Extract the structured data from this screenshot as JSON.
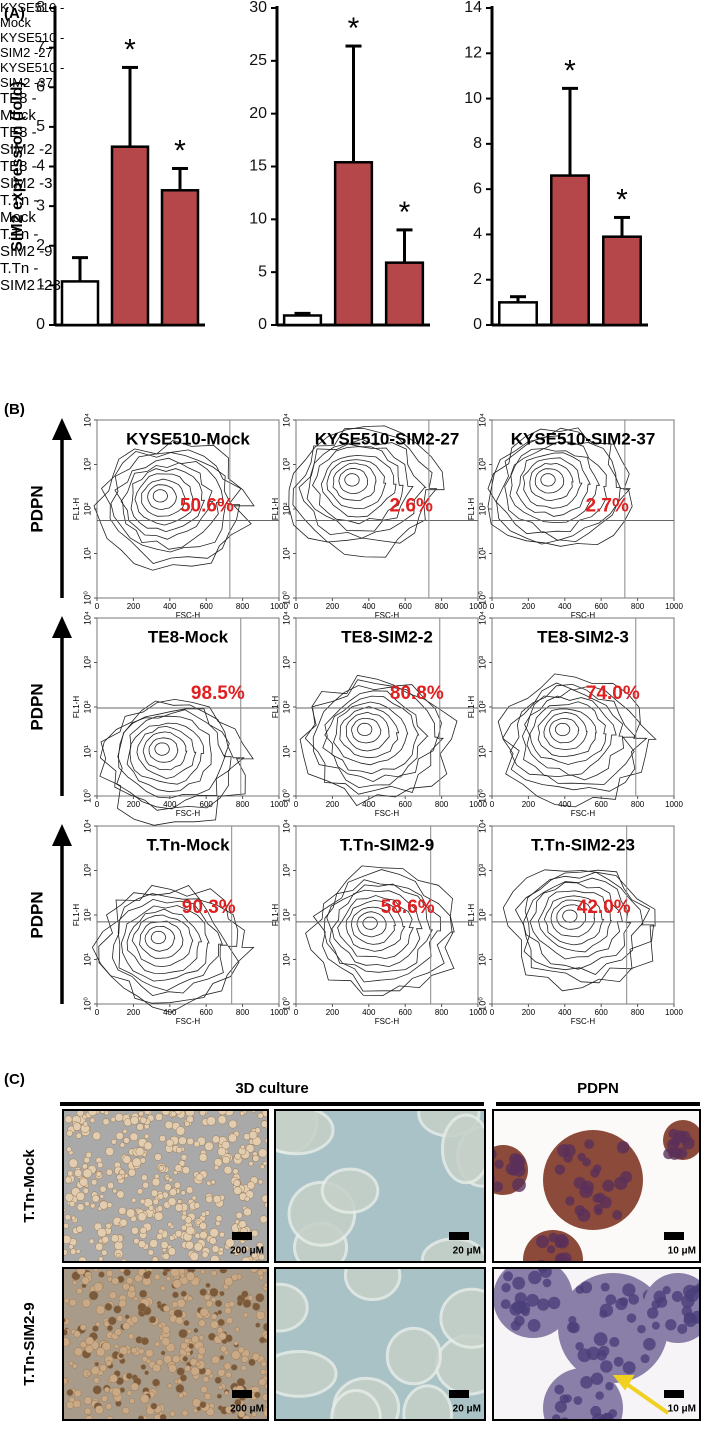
{
  "panel_labels": {
    "a": "(A)",
    "b": "(B)",
    "c": "(C)"
  },
  "chart_data": [
    {
      "type": "bar",
      "y_label": "SIM2 expression (fold)",
      "categories": [
        "KYSE510 -Mock",
        "KYSE510 -SIM2 -27",
        "KYSE510 -SIM2 -37"
      ],
      "values": [
        1.1,
        4.5,
        3.4
      ],
      "errors": [
        0.6,
        2.0,
        0.55
      ],
      "colors": [
        "#ffffff",
        "#b5474b",
        "#b5474b"
      ],
      "annotations": [
        {
          "category": "KYSE510 -SIM2 -27",
          "text": "*"
        },
        {
          "category": "KYSE510 -SIM2 -37",
          "text": "*"
        }
      ],
      "ylim": [
        0,
        8
      ],
      "yticks": [
        0,
        1,
        2,
        3,
        4,
        5,
        6,
        7,
        8
      ]
    },
    {
      "type": "bar",
      "categories": [
        "TE8 -Mock",
        "TE8 -SIM2 -2",
        "TE8 -SIM2 -3"
      ],
      "values": [
        0.9,
        15.4,
        5.9
      ],
      "errors": [
        0.2,
        11.0,
        3.1
      ],
      "colors": [
        "#ffffff",
        "#b5474b",
        "#b5474b"
      ],
      "annotations": [
        {
          "category": "TE8 -SIM2 -2",
          "text": "*"
        },
        {
          "category": "TE8 -SIM2 -3",
          "text": "*"
        }
      ],
      "ylim": [
        0,
        30
      ],
      "yticks": [
        0,
        5,
        10,
        15,
        20,
        25,
        30
      ]
    },
    {
      "type": "bar",
      "categories": [
        "T.Tn -Mock",
        "T.Tn -SIM2 -9",
        "T.Tn -SIM2 -23"
      ],
      "values": [
        1.0,
        6.6,
        3.9
      ],
      "errors": [
        0.25,
        3.85,
        0.85
      ],
      "colors": [
        "#ffffff",
        "#b5474b",
        "#b5474b"
      ],
      "annotations": [
        {
          "category": "T.Tn -SIM2 -9",
          "text": "*"
        },
        {
          "category": "T.Tn -SIM2 -23",
          "text": "*"
        }
      ],
      "ylim": [
        0,
        14
      ],
      "yticks": [
        0,
        2,
        4,
        6,
        8,
        10,
        12,
        14
      ]
    }
  ],
  "flow_cytometry": {
    "row_label": "PDPN",
    "x_label": "FSC-H",
    "y_label": "FL1-H",
    "xlim": [
      0,
      1000
    ],
    "xticks": [
      0,
      200,
      400,
      600,
      800,
      1000
    ],
    "ylim": [
      1,
      10000
    ],
    "log_y": true,
    "yticks": [
      {
        "value": 1,
        "label": "10⁰"
      },
      {
        "value": 10,
        "label": "10¹"
      },
      {
        "value": 100,
        "label": "10²"
      },
      {
        "value": 1000,
        "label": "10³"
      },
      {
        "value": 10000,
        "label": "10⁴"
      }
    ],
    "plots": [
      {
        "title": "KYSE510-Mock",
        "percent_label": "50.6%",
        "gate_x": 730,
        "gate_y": 55
      },
      {
        "title": "KYSE510-SIM2-27",
        "percent_label": "2.6%",
        "gate_x": 730,
        "gate_y": 55
      },
      {
        "title": "KYSE510-SIM2-37",
        "percent_label": "2.7%",
        "gate_x": 730,
        "gate_y": 55
      },
      {
        "title": "TE8-Mock",
        "percent_label": "98.5%",
        "gate_x": 790,
        "gate_y": 95
      },
      {
        "title": "TE8-SIM2-2",
        "percent_label": "80.8%",
        "gate_x": 790,
        "gate_y": 95
      },
      {
        "title": "TE8-SIM2-3",
        "percent_label": "74.0%",
        "gate_x": 790,
        "gate_y": 95
      },
      {
        "title": "T.Tn-Mock",
        "percent_label": "90.3%",
        "gate_x": 740,
        "gate_y": 70
      },
      {
        "title": "T.Tn-SIM2-9",
        "percent_label": "58.6%",
        "gate_x": 740,
        "gate_y": 70
      },
      {
        "title": "T.Tn-SIM2-23",
        "percent_label": "42.0%",
        "gate_x": 740,
        "gate_y": 70
      }
    ]
  },
  "culture": {
    "headers": [
      "3D culture",
      "PDPN"
    ],
    "rows": [
      {
        "label": "T.Tn-Mock",
        "scale_bars": [
          "200 μM",
          "20 μM",
          "10 μM"
        ]
      },
      {
        "label": "T.Tn-SIM2-9",
        "scale_bars": [
          "200 μM",
          "20 μM",
          "10 μM"
        ]
      }
    ]
  }
}
